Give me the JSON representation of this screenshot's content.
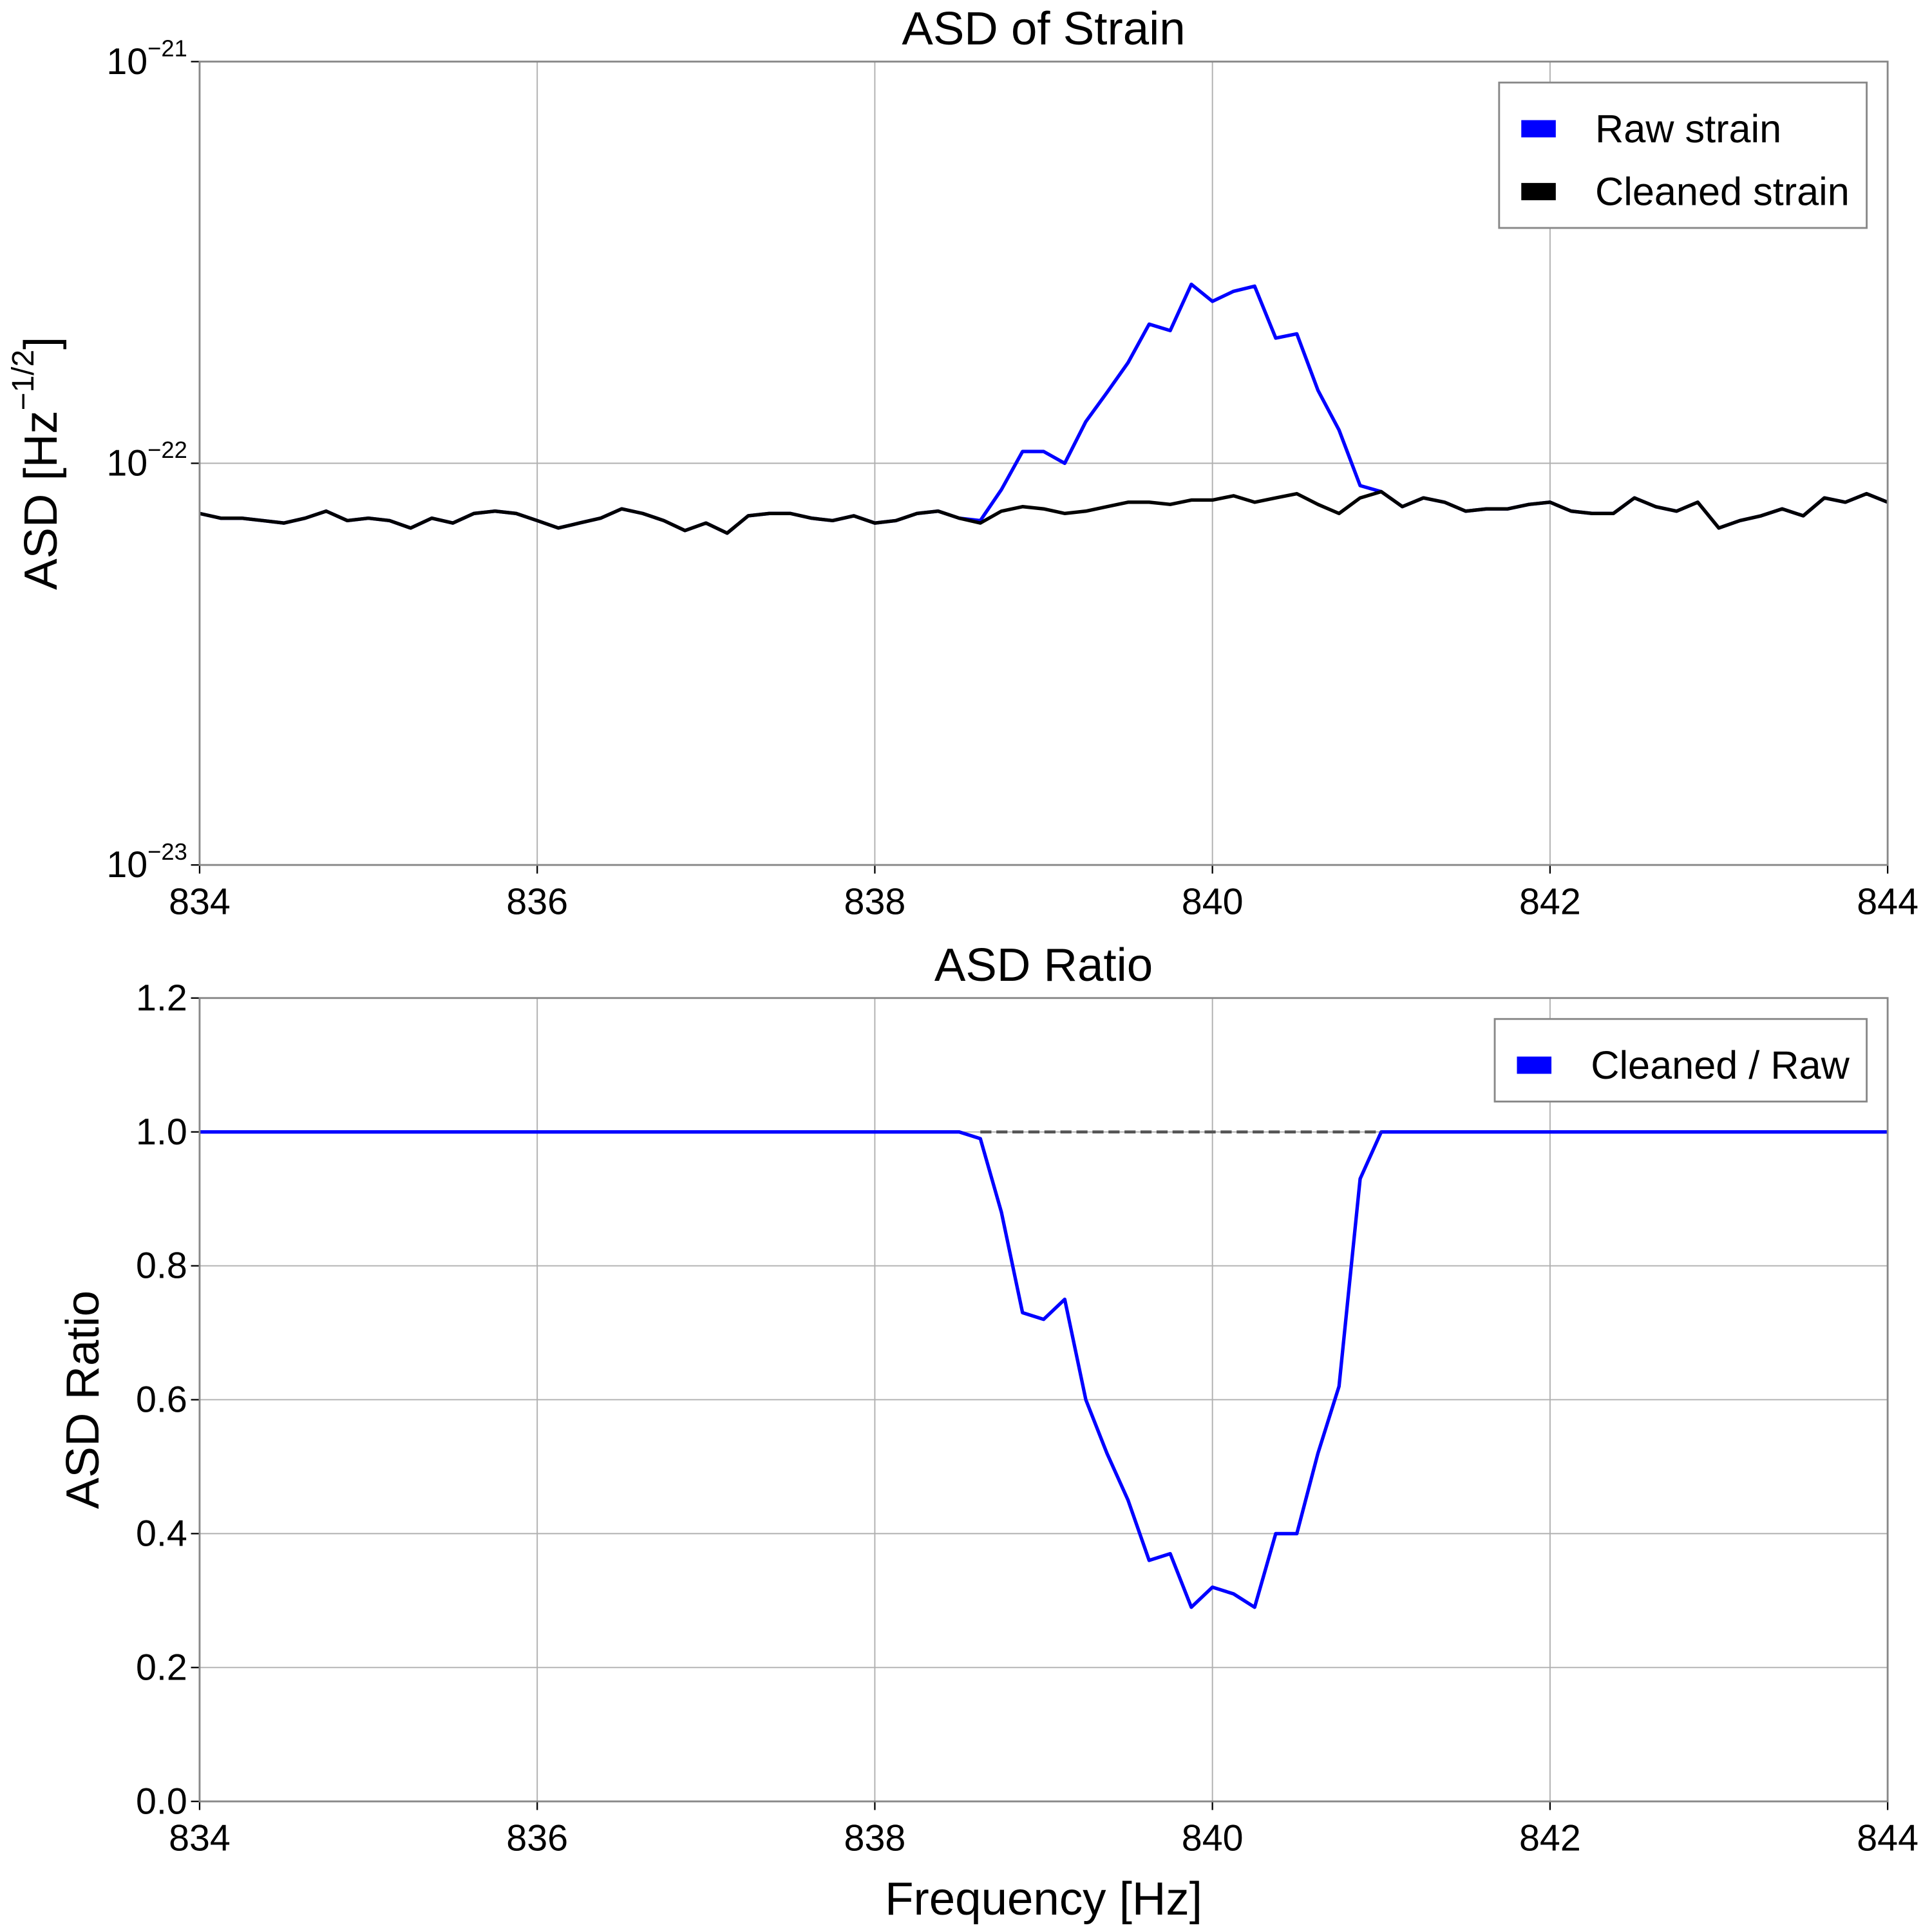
{
  "chart_data": [
    {
      "type": "line",
      "title": "ASD of Strain",
      "y_label": "ASD [Hz−1/2]",
      "yscale": "log",
      "grid": true,
      "legend_loc": "upper right",
      "x": [
        834,
        834.125,
        834.25,
        834.375,
        834.5,
        834.625,
        834.75,
        834.875,
        835,
        835.125,
        835.25,
        835.375,
        835.5,
        835.625,
        835.75,
        835.875,
        836,
        836.125,
        836.25,
        836.375,
        836.5,
        836.625,
        836.75,
        836.875,
        837,
        837.125,
        837.25,
        837.375,
        837.5,
        837.625,
        837.75,
        837.875,
        838,
        838.125,
        838.25,
        838.375,
        838.5,
        838.625,
        838.75,
        838.875,
        839,
        839.125,
        839.25,
        839.375,
        839.5,
        839.625,
        839.75,
        839.875,
        840,
        840.125,
        840.25,
        840.375,
        840.5,
        840.625,
        840.75,
        840.875,
        841,
        841.125,
        841.25,
        841.375,
        841.5,
        841.625,
        841.75,
        841.875,
        842,
        842.125,
        842.25,
        842.375,
        842.5,
        842.625,
        842.75,
        842.875,
        843,
        843.125,
        843.25,
        843.375,
        843.5,
        843.625,
        843.75,
        843.875,
        844
      ],
      "xlim": [
        834,
        844
      ],
      "xticks": [
        834,
        836,
        838,
        840,
        842,
        844
      ],
      "ylim": [
        1e-23,
        1e-21
      ],
      "yticks": [
        {
          "value": 1e-23,
          "label": "10−23"
        },
        {
          "value": 1e-22,
          "label": "10−22"
        },
        {
          "value": 1e-21,
          "label": "10−21"
        }
      ],
      "series": [
        {
          "name": "Raw strain",
          "color": "#0000ff",
          "values": [
            7.5e-23,
            7.3e-23,
            7.3e-23,
            7.2e-23,
            7.1e-23,
            7.3e-23,
            7.6e-23,
            7.2e-23,
            7.3e-23,
            7.2e-23,
            6.9e-23,
            7.3e-23,
            7.1e-23,
            7.5e-23,
            7.6e-23,
            7.5e-23,
            7.2e-23,
            6.9e-23,
            7.1e-23,
            7.3e-23,
            7.7e-23,
            7.5e-23,
            7.2e-23,
            6.8e-23,
            7.1e-23,
            6.7e-23,
            7.4e-23,
            7.5e-23,
            7.5e-23,
            7.3e-23,
            7.2e-23,
            7.4e-23,
            7.1e-23,
            7.2e-23,
            7.5e-23,
            7.6e-23,
            7.3e-23,
            7.2e-23,
            8.6e-23,
            1.07e-22,
            1.07e-22,
            1e-22,
            1.27e-22,
            1.5e-22,
            1.78e-22,
            2.22e-22,
            2.14e-22,
            2.79e-22,
            2.53e-22,
            2.68e-22,
            2.76e-22,
            2.05e-22,
            2.1e-22,
            1.52e-22,
            1.21e-22,
            8.8e-23,
            8.5e-23,
            7.8e-23,
            8.2e-23,
            8e-23,
            7.6e-23,
            7.7e-23,
            7.7e-23,
            7.9e-23,
            8e-23,
            7.6e-23,
            7.5e-23,
            7.5e-23,
            8.2e-23,
            7.8e-23,
            7.6e-23,
            8e-23,
            6.9e-23,
            7.2e-23,
            7.4e-23,
            7.7e-23,
            7.4e-23,
            8.2e-23,
            8e-23,
            8.4e-23,
            8e-23
          ]
        },
        {
          "name": "Cleaned strain",
          "color": "#000000",
          "values": [
            7.5e-23,
            7.3e-23,
            7.3e-23,
            7.2e-23,
            7.1e-23,
            7.3e-23,
            7.6e-23,
            7.2e-23,
            7.3e-23,
            7.2e-23,
            6.9e-23,
            7.3e-23,
            7.1e-23,
            7.5e-23,
            7.6e-23,
            7.5e-23,
            7.2e-23,
            6.9e-23,
            7.1e-23,
            7.3e-23,
            7.7e-23,
            7.5e-23,
            7.2e-23,
            6.8e-23,
            7.1e-23,
            6.7e-23,
            7.4e-23,
            7.5e-23,
            7.5e-23,
            7.3e-23,
            7.2e-23,
            7.4e-23,
            7.1e-23,
            7.2e-23,
            7.5e-23,
            7.6e-23,
            7.3e-23,
            7.1e-23,
            7.6e-23,
            7.8e-23,
            7.7e-23,
            7.5e-23,
            7.6e-23,
            7.8e-23,
            8e-23,
            8e-23,
            7.9e-23,
            8.1e-23,
            8.1e-23,
            8.3e-23,
            8e-23,
            8.2e-23,
            8.4e-23,
            7.9e-23,
            7.5e-23,
            8.2e-23,
            8.5e-23,
            7.8e-23,
            8.2e-23,
            8e-23,
            7.6e-23,
            7.7e-23,
            7.7e-23,
            7.9e-23,
            8e-23,
            7.6e-23,
            7.5e-23,
            7.5e-23,
            8.2e-23,
            7.8e-23,
            7.6e-23,
            8e-23,
            6.9e-23,
            7.2e-23,
            7.4e-23,
            7.7e-23,
            7.4e-23,
            8.2e-23,
            8e-23,
            8.4e-23,
            8e-23
          ]
        }
      ]
    },
    {
      "type": "line",
      "title": "ASD Ratio",
      "y_label": "ASD Ratio",
      "x_label": "Frequency [Hz]",
      "grid": true,
      "legend_loc": "upper right",
      "x": [
        834,
        834.125,
        834.25,
        834.375,
        834.5,
        834.625,
        834.75,
        834.875,
        835,
        835.125,
        835.25,
        835.375,
        835.5,
        835.625,
        835.75,
        835.875,
        836,
        836.125,
        836.25,
        836.375,
        836.5,
        836.625,
        836.75,
        836.875,
        837,
        837.125,
        837.25,
        837.375,
        837.5,
        837.625,
        837.75,
        837.875,
        838,
        838.125,
        838.25,
        838.375,
        838.5,
        838.625,
        838.75,
        838.875,
        839,
        839.125,
        839.25,
        839.375,
        839.5,
        839.625,
        839.75,
        839.875,
        840,
        840.125,
        840.25,
        840.375,
        840.5,
        840.625,
        840.75,
        840.875,
        841,
        841.125,
        841.25,
        841.375,
        841.5,
        841.625,
        841.75,
        841.875,
        842,
        842.125,
        842.25,
        842.375,
        842.5,
        842.625,
        842.75,
        842.875,
        843,
        843.125,
        843.25,
        843.375,
        843.5,
        843.625,
        843.75,
        843.875,
        844
      ],
      "xlim": [
        834,
        844
      ],
      "xticks": [
        834,
        836,
        838,
        840,
        842,
        844
      ],
      "ylim": [
        0,
        1.2
      ],
      "yticks": [
        {
          "value": 0,
          "label": "0.0"
        },
        0.2,
        0.4,
        0.6,
        0.8,
        {
          "value": 1,
          "label": "1.0"
        },
        1.2
      ],
      "hline": {
        "y": 1,
        "x": [
          838.625,
          841
        ],
        "color": "#555555"
      },
      "series": [
        {
          "name": "Cleaned / Raw",
          "color": "#0000ff",
          "values": [
            1,
            1,
            1,
            1,
            1,
            1,
            1,
            1,
            1,
            1,
            1,
            1,
            1,
            1,
            1,
            1,
            1,
            1,
            1,
            1,
            1,
            1,
            1,
            1,
            1,
            1,
            1,
            1,
            1,
            1,
            1,
            1,
            1,
            1,
            1,
            1,
            1,
            0.99,
            0.88,
            0.73,
            0.72,
            0.75,
            0.6,
            0.52,
            0.45,
            0.36,
            0.37,
            0.29,
            0.32,
            0.31,
            0.29,
            0.4,
            0.4,
            0.52,
            0.62,
            0.93,
            1,
            1,
            1,
            1,
            1,
            1,
            1,
            1,
            1,
            1,
            1,
            1,
            1,
            1,
            1,
            1,
            1,
            1,
            1,
            1,
            1,
            1,
            1,
            1,
            1
          ]
        }
      ]
    }
  ]
}
